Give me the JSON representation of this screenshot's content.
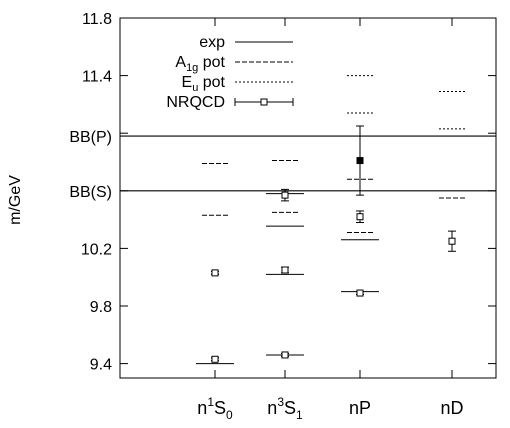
{
  "chart_data": {
    "type": "scatter",
    "ylabel": "m/GeV",
    "ylim": [
      9.3,
      11.8
    ],
    "yticks": [
      9.4,
      9.8,
      10.2,
      10.6,
      11.0,
      11.4,
      11.8
    ],
    "ytick_labels": [
      "9.4",
      "9.8",
      "10.2",
      "",
      "",
      "11.4",
      "11.8"
    ],
    "categories": [
      {
        "base": "n",
        "sup": "1",
        "main": "S",
        "sub": "0"
      },
      {
        "base": "n",
        "sup": "3",
        "main": "S",
        "sub": "1"
      },
      {
        "base": "nP",
        "sup": "",
        "main": "",
        "sub": ""
      },
      {
        "base": "nD",
        "sup": "",
        "main": "",
        "sub": ""
      }
    ],
    "thresholds": [
      {
        "label": "BB(P)",
        "value": 10.98
      },
      {
        "label": "BB(S)",
        "value": 10.6
      }
    ],
    "legend": {
      "placement": "top-left",
      "entries": [
        {
          "key": "exp",
          "text": "exp"
        },
        {
          "key": "a1g",
          "main": "A",
          "sub": "1g",
          "rest": " pot"
        },
        {
          "key": "eu",
          "main": "E",
          "sub": "u",
          "rest": " pot"
        },
        {
          "key": "nrqcd",
          "text": "NRQCD"
        }
      ]
    },
    "series": [
      {
        "name": "exp",
        "points": [
          {
            "x": 0,
            "y": 9.4
          },
          {
            "x": 1,
            "y": 9.46
          },
          {
            "x": 1,
            "y": 10.02
          },
          {
            "x": 1,
            "y": 10.355
          },
          {
            "x": 1,
            "y": 10.58
          },
          {
            "x": 2,
            "y": 9.9
          },
          {
            "x": 2,
            "y": 10.26
          }
        ]
      },
      {
        "name": "A1g pot",
        "points": [
          {
            "x": 0,
            "y": 10.43
          },
          {
            "x": 0,
            "y": 10.79
          },
          {
            "x": 1,
            "y": 10.45
          },
          {
            "x": 1,
            "y": 10.81
          },
          {
            "x": 2,
            "y": 10.31
          },
          {
            "x": 2,
            "y": 10.68
          },
          {
            "x": 3,
            "y": 10.55
          }
        ]
      },
      {
        "name": "Eu pot",
        "points": [
          {
            "x": 2,
            "y": 11.14
          },
          {
            "x": 2,
            "y": 11.4
          },
          {
            "x": 3,
            "y": 11.03
          },
          {
            "x": 3,
            "y": 11.29
          }
        ]
      },
      {
        "name": "NRQCD",
        "points": [
          {
            "x": 0,
            "y": 9.43,
            "err": 0.01
          },
          {
            "x": 0,
            "y": 10.03,
            "err": 0.01
          },
          {
            "x": 1,
            "y": 9.46,
            "err": 0.01
          },
          {
            "x": 1,
            "y": 10.05,
            "err": 0.02
          },
          {
            "x": 1,
            "y": 10.57,
            "err": 0.04
          },
          {
            "x": 2,
            "y": 9.89,
            "err": 0.01
          },
          {
            "x": 2,
            "y": 10.42,
            "err": 0.04
          },
          {
            "x": 2,
            "y": 10.81,
            "err": 0.24,
            "filled": true
          },
          {
            "x": 3,
            "y": 10.25,
            "err": 0.07
          }
        ]
      }
    ]
  }
}
